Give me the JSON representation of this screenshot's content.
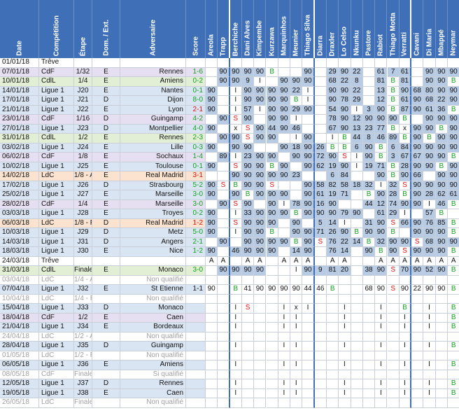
{
  "headers": {
    "info": [
      "Date",
      "Compétition",
      "Étape",
      "Dom. / Ext.",
      "Adversaire",
      "Score"
    ],
    "players": [
      "Areola",
      "Trapp",
      "Berchiche",
      "Dani Alves",
      "Kimpembe",
      "Kurzawa",
      "Marquinhos",
      "Meunier",
      "Thiago Silva",
      "Diarra",
      "Draxler",
      "Lo Celso",
      "Nkunku",
      "Pastore",
      "Rabiot",
      "Thiago Motta",
      "Verratti",
      "Cavani",
      "Di Maria",
      "Mbappé",
      "Neymar"
    ]
  },
  "colors": {
    "header": "#3e6fb7",
    "played": "#b8cbe4",
    "cdf": "#e6dff2",
    "cdl": "#e2efd5",
    "ldc": "#fbe3cf",
    "ligue1": "#d9e5f3",
    "treve": "#ffffff",
    "card_red": "#e01010",
    "card_yellow": "#d9a800",
    "bench": "#14a020"
  },
  "rows": [
    {
      "date": "01/01/18",
      "comp": "Trêve",
      "etape": "",
      "de": "",
      "adv": "",
      "score": "",
      "sc": "",
      "type": "treve",
      "p": [
        "",
        "",
        "",
        "",
        "",
        "",
        "",
        "",
        "",
        "",
        "",
        "",
        "",
        "",
        "",
        "",
        "",
        "",
        "",
        "",
        ""
      ]
    },
    {
      "date": "07/01/18",
      "comp": "CdF",
      "etape": "1/32",
      "de": "E",
      "adv": "Rennes",
      "score": "1-6",
      "sc": "g",
      "type": "cdf",
      "p": [
        "",
        "90",
        "90",
        "90",
        "90",
        "B",
        "",
        "",
        "90",
        "",
        "29",
        "90",
        "22",
        "",
        "61",
        "7",
        "61",
        "",
        "90",
        "90",
        "90"
      ]
    },
    {
      "date": "10/01/18",
      "comp": "CdlL",
      "etape": "1/4",
      "de": "E",
      "adv": "Amiens",
      "score": "0-2",
      "sc": "g",
      "type": "cdl",
      "p": [
        "",
        "90",
        "90",
        "9",
        "I",
        "",
        "90",
        "90",
        "90",
        "",
        "68",
        "22",
        "8",
        "",
        "81",
        "B",
        "81",
        "",
        "90",
        "90",
        "B"
      ]
    },
    {
      "date": "14/01/18",
      "comp": "Ligue 1",
      "etape": "J20",
      "de": "E",
      "adv": "Nantes",
      "score": "0-1",
      "sc": "g",
      "type": "l1",
      "p": [
        "90",
        "",
        "I",
        "90",
        "90",
        "90",
        "90",
        "22",
        "I",
        "",
        "90",
        "90",
        "22",
        "",
        "13",
        "B",
        "90",
        "68",
        "80",
        "90",
        "90"
      ]
    },
    {
      "date": "17/01/18",
      "comp": "Ligue 1",
      "etape": "J21",
      "de": "D",
      "adv": "Dijon",
      "score": "8-0",
      "sc": "g",
      "type": "l1",
      "p": [
        "90",
        "",
        "I",
        "90",
        "90",
        "90",
        "90",
        "B",
        "I",
        "",
        "90",
        "78",
        "29",
        "",
        "12",
        "B",
        "61",
        "90",
        "68",
        "22",
        "90"
      ]
    },
    {
      "date": "21/01/18",
      "comp": "Ligue 1",
      "etape": "J22",
      "de": "E",
      "adv": "Lyon",
      "score": "2-1",
      "sc": "r",
      "type": "l1",
      "p": [
        "90",
        "",
        "I",
        "57",
        "I",
        "90",
        "90",
        "29",
        "90",
        "",
        "54",
        "90",
        "I",
        "3",
        "90",
        "B",
        "87",
        "90",
        "61",
        "36",
        "B"
      ]
    },
    {
      "date": "23/01/18",
      "comp": "CdF",
      "etape": "1/16",
      "de": "D",
      "adv": "Guingamp",
      "score": "4-2",
      "sc": "g",
      "type": "cdf",
      "p": [
        "",
        "90",
        "S",
        "90",
        "",
        "90",
        "90",
        "I",
        "",
        "",
        "78",
        "90",
        "12",
        "90",
        "90",
        "90",
        "B",
        "",
        "90",
        "90",
        "90"
      ]
    },
    {
      "date": "27/01/18",
      "comp": "Ligue 1",
      "etape": "J23",
      "de": "D",
      "adv": "Montpellier",
      "score": "4-0",
      "sc": "g",
      "type": "l1",
      "p": [
        "90",
        "",
        "x",
        "S",
        "90",
        "44",
        "90",
        "46",
        "",
        "",
        "67",
        "90",
        "13",
        "23",
        "77",
        "B",
        "x",
        "90",
        "90",
        "B",
        "90"
      ]
    },
    {
      "date": "31/01/18",
      "comp": "CdlL",
      "etape": "1/2",
      "de": "E",
      "adv": "Rennes",
      "score": "2-3",
      "sc": "g",
      "type": "cdl",
      "p": [
        "",
        "90",
        "90",
        "S",
        "90",
        "90",
        "",
        "I",
        "90",
        "",
        "I",
        "B",
        "44",
        "8",
        "46",
        "89",
        "B",
        "90",
        "B",
        "90",
        "90"
      ]
    },
    {
      "date": "03/02/18",
      "comp": "Ligue 1",
      "etape": "J24",
      "de": "E",
      "adv": "Lille",
      "score": "0-3",
      "sc": "g",
      "type": "l1",
      "p": [
        "90",
        "",
        "90",
        "90",
        "",
        "",
        "90",
        "18",
        "90",
        "26",
        "B",
        "B",
        "6",
        "90",
        "B",
        "6",
        "84",
        "90",
        "90",
        "90",
        "90"
      ]
    },
    {
      "date": "06/02/18",
      "comp": "CdF",
      "etape": "1/8",
      "de": "E",
      "adv": "Sochaux",
      "score": "1-4",
      "sc": "g",
      "type": "cdf",
      "p": [
        "",
        "89",
        "I",
        "23",
        "90",
        "90",
        "",
        "90",
        "90",
        "72",
        "90",
        "S",
        "I",
        "90",
        "B",
        "3",
        "67",
        "67",
        "90",
        "90",
        "B"
      ]
    },
    {
      "date": "10/02/18",
      "comp": "Ligue 1",
      "etape": "J25",
      "de": "E",
      "adv": "Toulouse",
      "score": "0-1",
      "sc": "g",
      "type": "l1",
      "p": [
        "90",
        "",
        "S",
        "90",
        "90",
        "B",
        "90",
        "",
        "90",
        "62",
        "19",
        "90",
        "I",
        "19",
        "71",
        "B",
        "28",
        "90",
        "90",
        "B",
        "90"
      ]
    },
    {
      "date": "14/02/18",
      "comp": "LdC",
      "etape": "1/8 - A",
      "de": "E",
      "adv": "Real Madrid",
      "score": "3-1",
      "sc": "r",
      "type": "ldc",
      "p": [
        "",
        "",
        "90",
        "90",
        "90",
        "90",
        "90",
        "23",
        "",
        "",
        "6",
        "84",
        "",
        "",
        "90",
        "B",
        "90",
        "66",
        "",
        "90",
        "90"
      ]
    },
    {
      "date": "17/02/18",
      "comp": "Ligue 1",
      "etape": "J26",
      "de": "D",
      "adv": "Strasbourg",
      "score": "5-2",
      "sc": "g",
      "type": "l1",
      "p": [
        "90",
        "S",
        "B",
        "90",
        "90",
        "S",
        "",
        "",
        "90",
        "58",
        "82",
        "58",
        "18",
        "32",
        "I",
        "32",
        "S",
        "90",
        "90",
        "90",
        "90"
      ]
    },
    {
      "date": "25/02/18",
      "comp": "Ligue 1",
      "etape": "J27",
      "de": "E",
      "adv": "Marseille",
      "score": "3-0",
      "sc": "g",
      "type": "l1",
      "p": [
        "90",
        "",
        "90",
        "B",
        "90",
        "90",
        "90",
        "",
        "90",
        "61",
        "19",
        "71",
        "",
        "B",
        "90",
        "28",
        "B",
        "90",
        "28",
        "62",
        "61"
      ]
    },
    {
      "date": "28/02/18",
      "comp": "CdF",
      "etape": "1/4",
      "de": "E",
      "adv": "Marseille",
      "score": "3-0",
      "sc": "g",
      "type": "cdf",
      "p": [
        "",
        "90",
        "S",
        "90",
        "",
        "90",
        "I",
        "78",
        "90",
        "16",
        "90",
        "",
        "",
        "44",
        "12",
        "74",
        "90",
        "90",
        "I",
        "46",
        "B"
      ]
    },
    {
      "date": "03/03/18",
      "comp": "Ligue 1",
      "etape": "J28",
      "de": "E",
      "adv": "Troyes",
      "score": "0-2",
      "sc": "g",
      "type": "l1",
      "p": [
        "90",
        "",
        "I",
        "33",
        "90",
        "90",
        "90",
        "B",
        "90",
        "90",
        "90",
        "79",
        "90",
        "",
        "61",
        "29",
        "I",
        "",
        "57",
        "B",
        ""
      ]
    },
    {
      "date": "06/03/18",
      "comp": "LdC",
      "etape": "1/8 - R",
      "de": "D",
      "adv": "Real Madrid",
      "score": "1-2",
      "sc": "r",
      "type": "ldc",
      "p": [
        "90",
        "",
        "S",
        "90",
        "90",
        "90",
        "",
        "90",
        "",
        "5",
        "14",
        "I",
        "",
        "31",
        "90",
        "S",
        "66",
        "90",
        "76",
        "85",
        "B"
      ]
    },
    {
      "date": "10/03/18",
      "comp": "Ligue 1",
      "etape": "J29",
      "de": "D",
      "adv": "Metz",
      "score": "5-0",
      "sc": "g",
      "type": "l1",
      "p": [
        "90",
        "",
        "I",
        "90",
        "90",
        "B",
        "",
        "90",
        "90",
        "71",
        "26",
        "90",
        "B",
        "90",
        "90",
        "B",
        "",
        "90",
        "90",
        "90",
        "B"
      ]
    },
    {
      "date": "14/03/18",
      "comp": "Ligue 1",
      "etape": "J31",
      "de": "D",
      "adv": "Angers",
      "score": "2-1",
      "sc": "g",
      "type": "l1",
      "p": [
        "",
        "90",
        "",
        "90",
        "90",
        "90",
        "90",
        "B",
        "90",
        "S",
        "76",
        "22",
        "14",
        "B",
        "32",
        "90",
        "90",
        "S",
        "68",
        "90",
        "90"
      ]
    },
    {
      "date": "18/03/18",
      "comp": "Ligue 1",
      "etape": "J30",
      "de": "E",
      "adv": "Nice",
      "score": "1-2",
      "sc": "g",
      "type": "l1",
      "p": [
        "90",
        "",
        "46",
        "90",
        "90",
        "90",
        "",
        "14",
        "90",
        "",
        "76",
        "14",
        "",
        "90",
        "B",
        "90",
        "S",
        "90",
        "90",
        "90",
        "B"
      ]
    },
    {
      "date": "24/03/18",
      "comp": "Trêve",
      "etape": "",
      "de": "",
      "adv": "",
      "score": "",
      "sc": "",
      "type": "treve",
      "p": [
        "A",
        "A",
        "",
        "A",
        "A",
        "",
        "A",
        "A",
        "A",
        "",
        "A",
        "A",
        "",
        "",
        "A",
        "A",
        "A",
        "A",
        "A",
        "A",
        "A"
      ]
    },
    {
      "date": "31/03/18",
      "comp": "CdlL",
      "etape": "Finale",
      "de": "E",
      "adv": "Monaco",
      "score": "3-0",
      "sc": "g",
      "type": "cdl",
      "p": [
        "",
        "90",
        "90",
        "90",
        "90",
        "",
        "",
        "I",
        "90",
        "9",
        "81",
        "20",
        "",
        "38",
        "90",
        "S",
        "70",
        "90",
        "52",
        "90",
        "B"
      ]
    },
    {
      "date": "03/04/18",
      "comp": "LdC",
      "etape": "1/4 - A",
      "de": "",
      "adv": "Non qualifié",
      "score": "",
      "sc": "",
      "type": "nq",
      "p": [
        "",
        "",
        "",
        "",
        "",
        "",
        "",
        "",
        "",
        "",
        "",
        "",
        "",
        "",
        "",
        "",
        "",
        "",
        "",
        "",
        ""
      ]
    },
    {
      "date": "07/04/18",
      "comp": "Ligue 1",
      "etape": "J32",
      "de": "E",
      "adv": "St Etienne",
      "score": "1-1",
      "sc": "",
      "type": "l1",
      "p": [
        "90",
        "",
        "B",
        "41",
        "90",
        "90",
        "90",
        "90",
        "44",
        "46",
        "B",
        "",
        "",
        "68",
        "90",
        "S",
        "90",
        "22",
        "90",
        "90",
        "B"
      ]
    },
    {
      "date": "10/04/18",
      "comp": "LdC",
      "etape": "1/4 - R",
      "de": "",
      "adv": "Non qualifié",
      "score": "",
      "sc": "",
      "type": "nq",
      "p": [
        "",
        "",
        "",
        "",
        "",
        "",
        "",
        "",
        "",
        "",
        "",
        "",
        "",
        "",
        "",
        "",
        "",
        "",
        "",
        "",
        ""
      ]
    },
    {
      "date": "15/04/18",
      "comp": "Ligue 1",
      "etape": "J33",
      "de": "D",
      "adv": "Monaco",
      "score": "",
      "sc": "",
      "type": "l1",
      "p": [
        "",
        "",
        "I",
        "S",
        "",
        "",
        "I",
        "x",
        "I",
        "",
        "",
        "I",
        "",
        "",
        "I",
        "",
        "B",
        "",
        "I",
        "",
        "B"
      ]
    },
    {
      "date": "18/04/18",
      "comp": "CdF",
      "etape": "1/2",
      "de": "E",
      "adv": "Caen",
      "score": "",
      "sc": "",
      "type": "cdf",
      "p": [
        "",
        "",
        "I",
        "",
        "",
        "",
        "I",
        "I",
        "",
        "",
        "",
        "I",
        "",
        "",
        "I",
        "",
        "I",
        "",
        "I",
        "",
        "B"
      ]
    },
    {
      "date": "21/04/18",
      "comp": "Ligue 1",
      "etape": "J34",
      "de": "E",
      "adv": "Bordeaux",
      "score": "",
      "sc": "",
      "type": "l1",
      "p": [
        "",
        "",
        "I",
        "",
        "",
        "",
        "I",
        "I",
        "",
        "",
        "",
        "I",
        "",
        "",
        "I",
        "",
        "I",
        "",
        "I",
        "",
        "B"
      ]
    },
    {
      "date": "24/04/18",
      "comp": "LdC",
      "etape": "1/2 - A",
      "de": "",
      "adv": "Non qualifié",
      "score": "",
      "sc": "",
      "type": "nq",
      "p": [
        "",
        "",
        "",
        "",
        "",
        "",
        "",
        "",
        "",
        "",
        "",
        "",
        "",
        "",
        "",
        "",
        "",
        "",
        "",
        "",
        ""
      ]
    },
    {
      "date": "28/04/18",
      "comp": "Ligue 1",
      "etape": "J35",
      "de": "D",
      "adv": "Guingamp",
      "score": "",
      "sc": "",
      "type": "l1",
      "p": [
        "",
        "",
        "I",
        "",
        "",
        "",
        "I",
        "I",
        "",
        "",
        "",
        "I",
        "",
        "",
        "I",
        "",
        "I",
        "",
        "I",
        "",
        "B"
      ]
    },
    {
      "date": "01/05/18",
      "comp": "LdC",
      "etape": "1/2 - R",
      "de": "",
      "adv": "Non qualifié",
      "score": "",
      "sc": "",
      "type": "nq",
      "p": [
        "",
        "",
        "",
        "",
        "",
        "",
        "",
        "",
        "",
        "",
        "",
        "",
        "",
        "",
        "",
        "",
        "",
        "",
        "",
        "",
        ""
      ]
    },
    {
      "date": "06/05/18",
      "comp": "Ligue 1",
      "etape": "J36",
      "de": "E",
      "adv": "Amiens",
      "score": "",
      "sc": "",
      "type": "l1",
      "p": [
        "",
        "",
        "I",
        "",
        "",
        "",
        "I",
        "I",
        "",
        "",
        "",
        "I",
        "",
        "",
        "I",
        "",
        "I",
        "",
        "I",
        "",
        "B"
      ]
    },
    {
      "date": "08/05/18",
      "comp": "CdF",
      "etape": "Finale",
      "de": "",
      "adv": "Si qualifié",
      "score": "",
      "sc": "",
      "type": "nq",
      "p": [
        "",
        "",
        "",
        "",
        "",
        "",
        "",
        "",
        "",
        "",
        "",
        "",
        "",
        "",
        "",
        "",
        "",
        "",
        "",
        "",
        ""
      ]
    },
    {
      "date": "12/05/18",
      "comp": "Ligue 1",
      "etape": "J37",
      "de": "D",
      "adv": "Rennes",
      "score": "",
      "sc": "",
      "type": "l1",
      "p": [
        "",
        "",
        "I",
        "",
        "",
        "",
        "I",
        "I",
        "",
        "",
        "",
        "I",
        "",
        "",
        "I",
        "",
        "I",
        "",
        "I",
        "",
        "B"
      ]
    },
    {
      "date": "19/05/18",
      "comp": "Ligue 1",
      "etape": "J38",
      "de": "E",
      "adv": "Caen",
      "score": "",
      "sc": "",
      "type": "l1",
      "p": [
        "",
        "",
        "I",
        "",
        "",
        "",
        "I",
        "I",
        "",
        "",
        "",
        "I",
        "",
        "",
        "I",
        "",
        "I",
        "",
        "I",
        "",
        "B"
      ]
    },
    {
      "date": "26/05/18",
      "comp": "LdC",
      "etape": "Finale",
      "de": "",
      "adv": "Non qualifié",
      "score": "",
      "sc": "",
      "type": "nq",
      "p": [
        "",
        "",
        "",
        "",
        "",
        "",
        "",
        "",
        "",
        "",
        "",
        "",
        "",
        "",
        "",
        "",
        "",
        "",
        "",
        "",
        ""
      ]
    }
  ]
}
